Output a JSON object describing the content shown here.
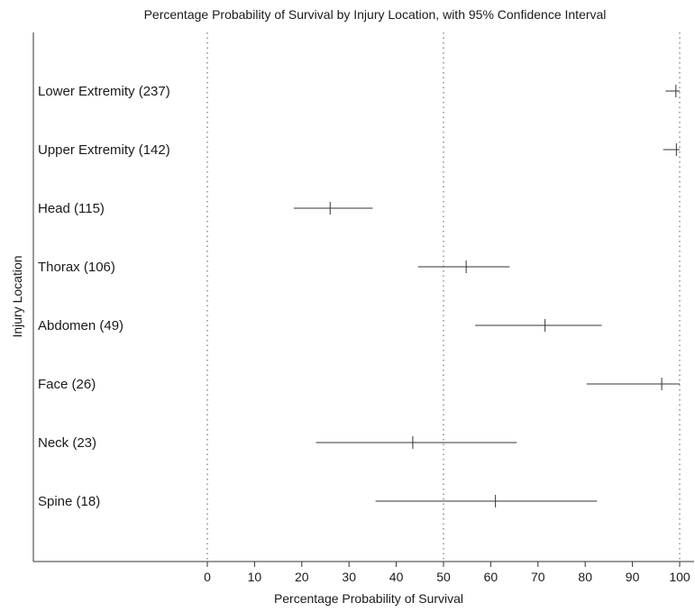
{
  "chart_data": {
    "type": "errorbar",
    "title": "Percentage Probability of Survival by Injury Location, with 95% Confidence Interval",
    "xlabel": "Percentage Probability of Survival",
    "ylabel": "Injury Location",
    "xlim": [
      0,
      100
    ],
    "xticks": [
      "0",
      "10",
      "20",
      "30",
      "40",
      "50",
      "60",
      "70",
      "80",
      "90",
      "100"
    ],
    "reference_lines": [
      0,
      50,
      100
    ],
    "grid": false,
    "categories": [
      "Lower Extremity (237)",
      "Upper Extremity (142)",
      "Head (115)",
      "Thorax (106)",
      "Abdomen (49)",
      "Face (26)",
      "Neck (23)",
      "Spine (18)"
    ],
    "series": [
      {
        "estimate": [
          99.2,
          99.3,
          26.0,
          54.8,
          71.5,
          96.2,
          43.5,
          61.0
        ],
        "lower": [
          97.0,
          96.5,
          18.3,
          44.6,
          56.7,
          80.3,
          23.0,
          35.6
        ],
        "upper": [
          100.0,
          100.0,
          35.0,
          64.0,
          83.5,
          100.0,
          65.5,
          82.5
        ]
      }
    ]
  }
}
